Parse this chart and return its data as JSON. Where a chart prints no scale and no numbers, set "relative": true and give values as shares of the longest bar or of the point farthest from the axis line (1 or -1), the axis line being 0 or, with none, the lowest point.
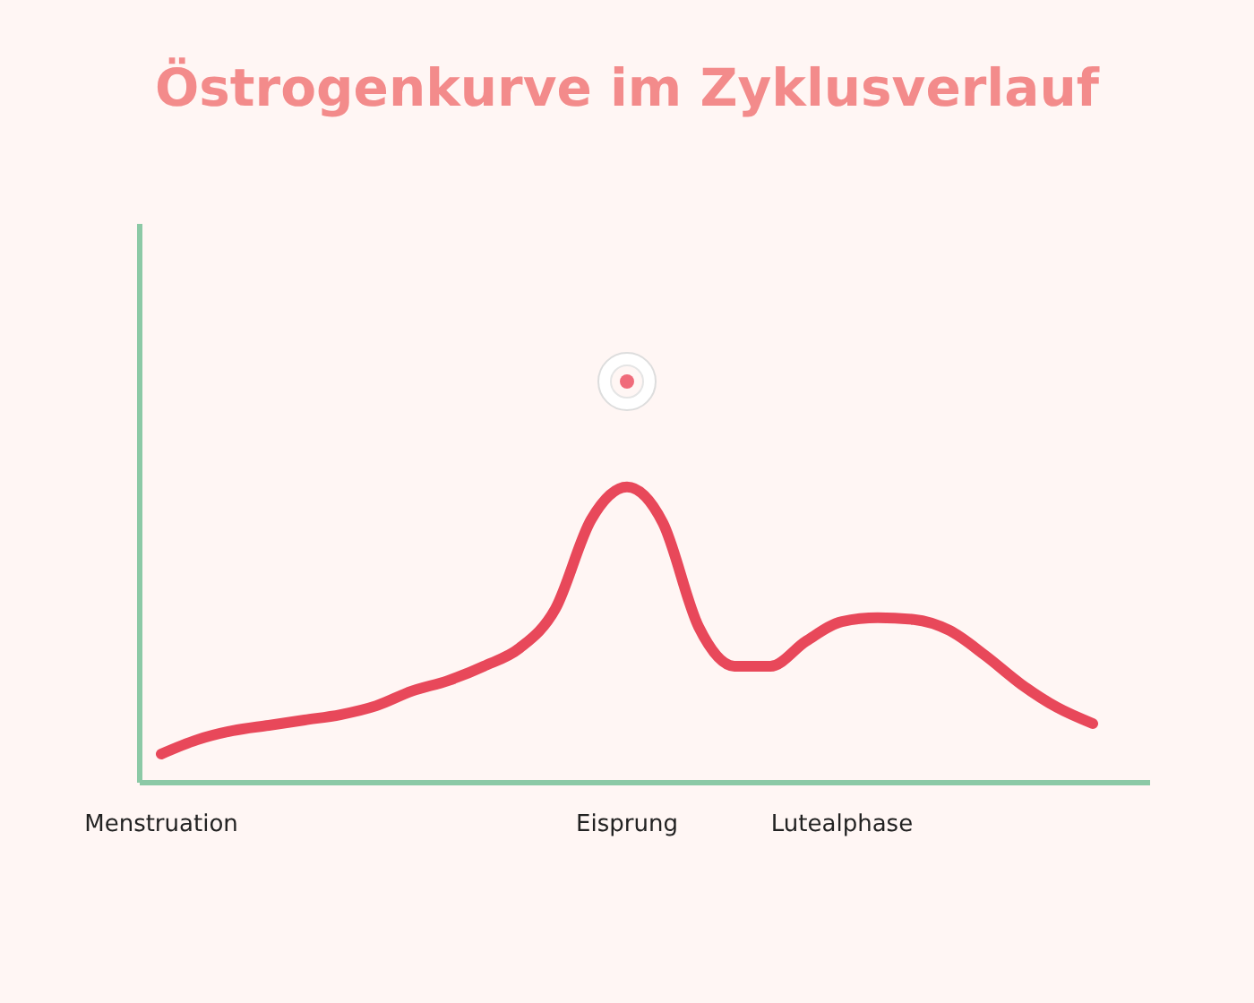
{
  "chart_data": {
    "type": "line",
    "title": "Östrogenkurve im Zyklusverlauf",
    "relative": true,
    "grid": false,
    "legend": false,
    "marker": "none",
    "line_style": "solid",
    "categories": [
      "Menstruation",
      null,
      null,
      null,
      null,
      null,
      null,
      null,
      null,
      null,
      null,
      null,
      null,
      "Eisprung",
      null,
      null,
      null,
      null,
      null,
      "Lutealphase",
      null,
      null,
      null,
      null,
      null,
      null,
      null
    ],
    "series": [
      {
        "color": "#e8485a",
        "values": [
          0.097,
          0.145,
          0.176,
          0.194,
          0.212,
          0.23,
          0.26,
          0.31,
          0.345,
          0.394,
          0.455,
          0.588,
          0.89,
          1.0,
          0.879,
          0.527,
          0.394,
          0.394,
          0.479,
          0.545,
          0.558,
          0.552,
          0.515,
          0.43,
          0.333,
          0.255,
          0.2
        ]
      }
    ]
  }
}
